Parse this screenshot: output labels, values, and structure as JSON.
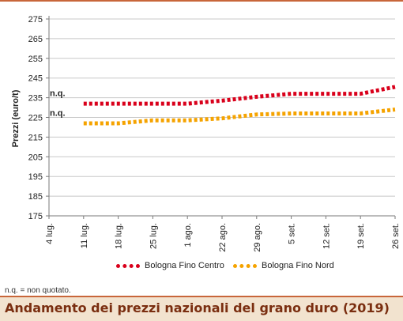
{
  "title": "Andamento dei prezzi nazionali del grano duro (2019)",
  "footnote": "n.q. = non quotato.",
  "colors": {
    "accent": "#c8663a",
    "title_text": "#7a2e10",
    "title_bg": "#f2e3cf",
    "grid": "#c8c8c8",
    "axis": "#7a7a7a"
  },
  "chart_data": {
    "type": "line",
    "title": "",
    "xlabel": "",
    "ylabel": "Prezzi (euro/t)",
    "ylim": [
      175,
      275
    ],
    "yticks": [
      175,
      185,
      195,
      205,
      215,
      225,
      235,
      245,
      255,
      265,
      275
    ],
    "categories": [
      "4 lug.",
      "11 lug.",
      "18 lug.",
      "25 lug.",
      "1 ago.",
      "22 ago.",
      "29 ago.",
      "5 set.",
      "12 set.",
      "19 set.",
      "26 set."
    ],
    "grid": "horizontal",
    "legend_position": "bottom",
    "annotations": [
      {
        "text": "n.q.",
        "category": "4 lug.",
        "value": 237.5
      },
      {
        "text": "n.q.",
        "category": "4 lug.",
        "value": 227.5
      }
    ],
    "series": [
      {
        "name": "Bologna Fino Centro",
        "color": "#d9001b",
        "values": [
          null,
          232,
          232,
          232,
          232,
          233.5,
          235.5,
          237,
          237,
          237,
          240.5
        ]
      },
      {
        "name": "Bologna Fino Nord",
        "color": "#f5a300",
        "values": [
          null,
          222,
          222,
          223.5,
          223.5,
          224.5,
          226.5,
          227,
          227,
          227,
          229
        ]
      }
    ]
  }
}
